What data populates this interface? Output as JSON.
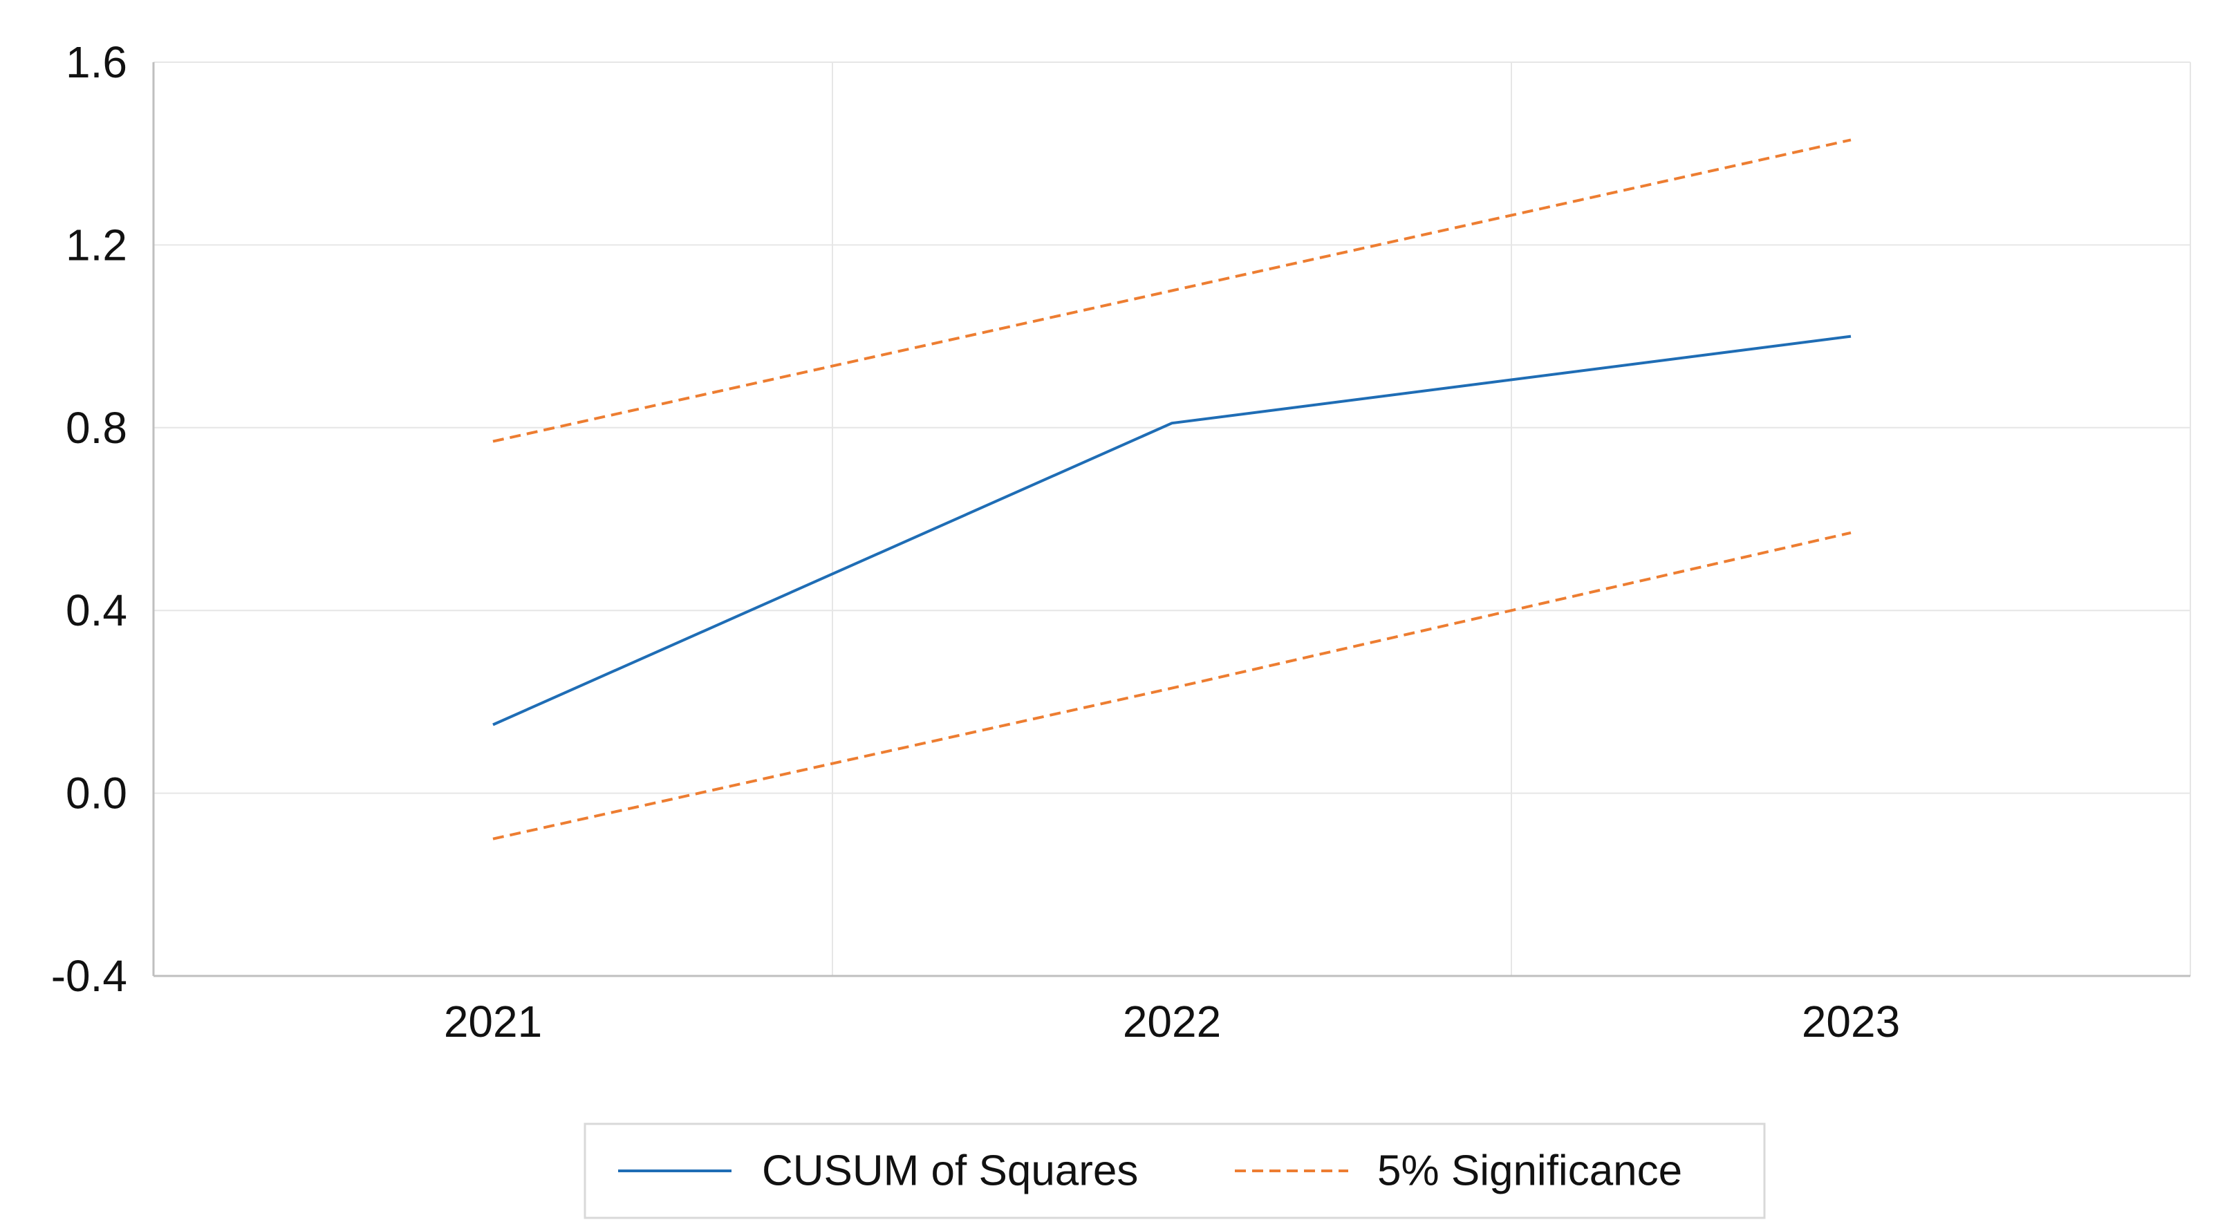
{
  "chart_data": {
    "type": "line",
    "title": "",
    "xlabel": "",
    "ylabel": "",
    "categories": [
      "2021",
      "2022",
      "2023"
    ],
    "ylim": [
      -0.4,
      1.6
    ],
    "yticks": [
      "1.6",
      "1.2",
      "0.8",
      "0.4",
      "0.0",
      "-0.4"
    ],
    "ytick_values": [
      1.6,
      1.2,
      0.8,
      0.4,
      0.0,
      -0.4
    ],
    "grid": true,
    "legend_position": "bottom",
    "series": [
      {
        "name": "CUSUM of Squares",
        "values": [
          0.15,
          0.81,
          1.0
        ],
        "color": "#1f6db5",
        "style": "solid"
      },
      {
        "name": "5% Significance",
        "values": [
          0.77,
          1.1,
          1.43
        ],
        "color": "#ed7d31",
        "style": "dashed"
      },
      {
        "values": [
          -0.1,
          0.23,
          0.57
        ],
        "color": "#ed7d31",
        "style": "dashed"
      }
    ],
    "legend": [
      "CUSUM of Squares",
      "5% Significance"
    ]
  }
}
